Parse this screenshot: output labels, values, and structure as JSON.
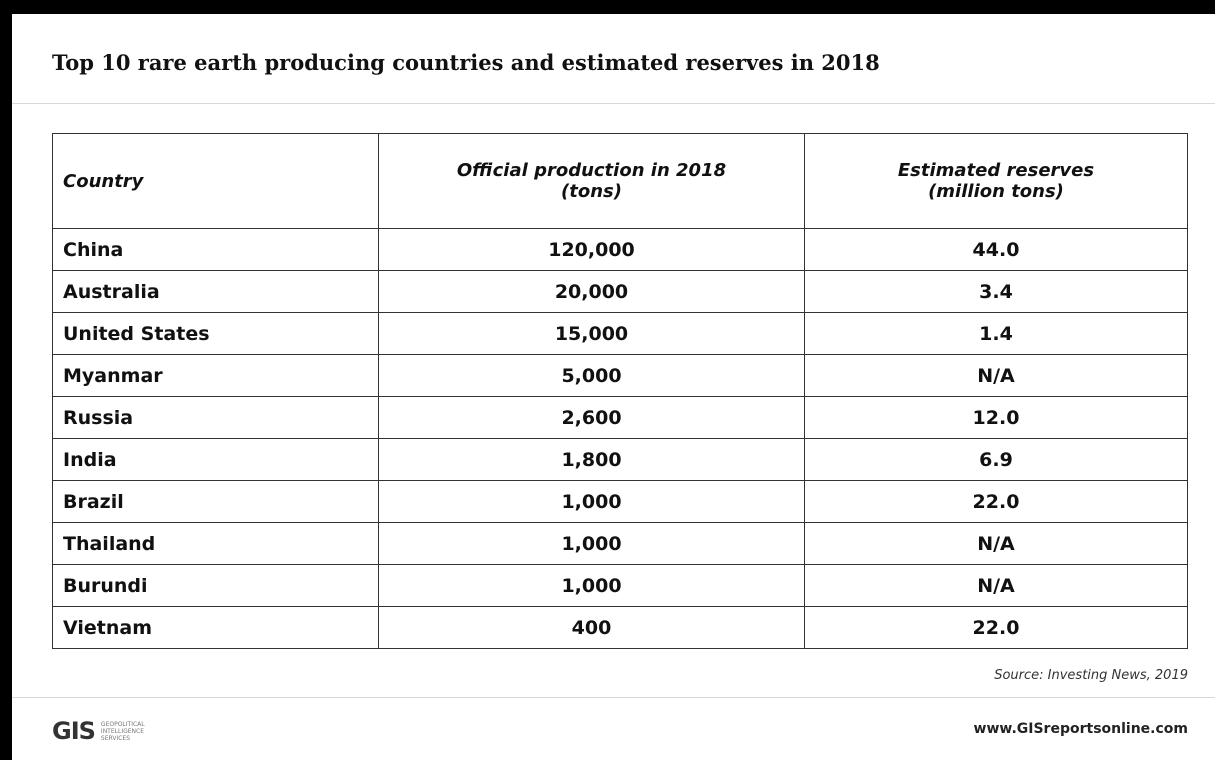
{
  "header": {
    "title": "Top 10 rare earth producing countries and estimated reserves in 2018"
  },
  "table": {
    "columns": [
      [
        "Country"
      ],
      [
        "Official production in 2018",
        "(tons)"
      ],
      [
        "Estimated reserves",
        "(million tons)"
      ]
    ],
    "rows": [
      [
        "China",
        "120,000",
        "44.0"
      ],
      [
        "Australia",
        "20,000",
        "3.4"
      ],
      [
        "United States",
        "15,000",
        "1.4"
      ],
      [
        "Myanmar",
        "5,000",
        "N/A"
      ],
      [
        "Russia",
        "2,600",
        "12.0"
      ],
      [
        "India",
        "1,800",
        "6.9"
      ],
      [
        "Brazil",
        "1,000",
        "22.0"
      ],
      [
        "Thailand",
        "1,000",
        "N/A"
      ],
      [
        "Burundi",
        "1,000",
        "N/A"
      ],
      [
        "Vietnam",
        "400",
        "22.0"
      ]
    ]
  },
  "source": "Source: Investing News, 2019",
  "footer": {
    "logo": "GIS",
    "logo_lines": [
      "GEOPOLITICAL",
      "INTELLIGENCE",
      "SERVICES"
    ],
    "url": "www.GISreportsonline.com"
  }
}
